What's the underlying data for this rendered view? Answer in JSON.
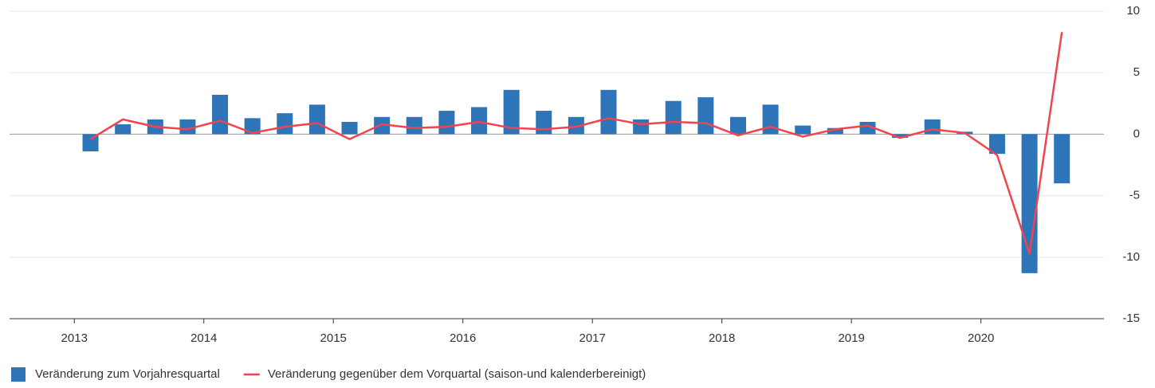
{
  "chart_data": {
    "type": "bar_line",
    "x": [
      2013.125,
      2013.375,
      2013.625,
      2013.875,
      2014.125,
      2014.375,
      2014.625,
      2014.875,
      2015.125,
      2015.375,
      2015.625,
      2015.875,
      2016.125,
      2016.375,
      2016.625,
      2016.875,
      2017.125,
      2017.375,
      2017.625,
      2017.875,
      2018.125,
      2018.375,
      2018.625,
      2018.875,
      2019.125,
      2019.375,
      2019.625,
      2019.875,
      2020.125,
      2020.375,
      2020.625
    ],
    "series": [
      {
        "name": "Veränderung zum Vorjahresquartal",
        "type": "bar",
        "color": "#2e74b8",
        "values": [
          -1.4,
          0.8,
          1.2,
          1.2,
          3.2,
          1.3,
          1.7,
          2.4,
          1.0,
          1.4,
          1.4,
          1.9,
          2.2,
          3.6,
          1.9,
          1.4,
          3.6,
          1.2,
          2.7,
          3.0,
          1.4,
          2.4,
          0.7,
          0.5,
          1.0,
          -0.3,
          1.2,
          0.2,
          -1.6,
          -11.3,
          -4.0
        ]
      },
      {
        "name": "Veränderung gegenüber dem Vorquartal (saison-und kalenderbereinigt)",
        "type": "line",
        "color": "#f0444f",
        "values": [
          -0.4,
          1.2,
          0.6,
          0.4,
          1.1,
          0.1,
          0.6,
          0.9,
          -0.4,
          0.8,
          0.5,
          0.6,
          1.0,
          0.5,
          0.4,
          0.6,
          1.3,
          0.8,
          1.0,
          0.9,
          -0.1,
          0.6,
          -0.2,
          0.4,
          0.7,
          -0.3,
          0.4,
          0.1,
          -1.7,
          -9.7,
          8.3
        ]
      }
    ],
    "xlim": [
      2012.5,
      2020.95
    ],
    "xticks": [
      2013,
      2014,
      2015,
      2016,
      2017,
      2018,
      2019,
      2020
    ],
    "ylim": [
      -15,
      10
    ],
    "yticks": [
      10,
      5,
      0,
      -5,
      -10,
      -15
    ],
    "grid": true
  }
}
